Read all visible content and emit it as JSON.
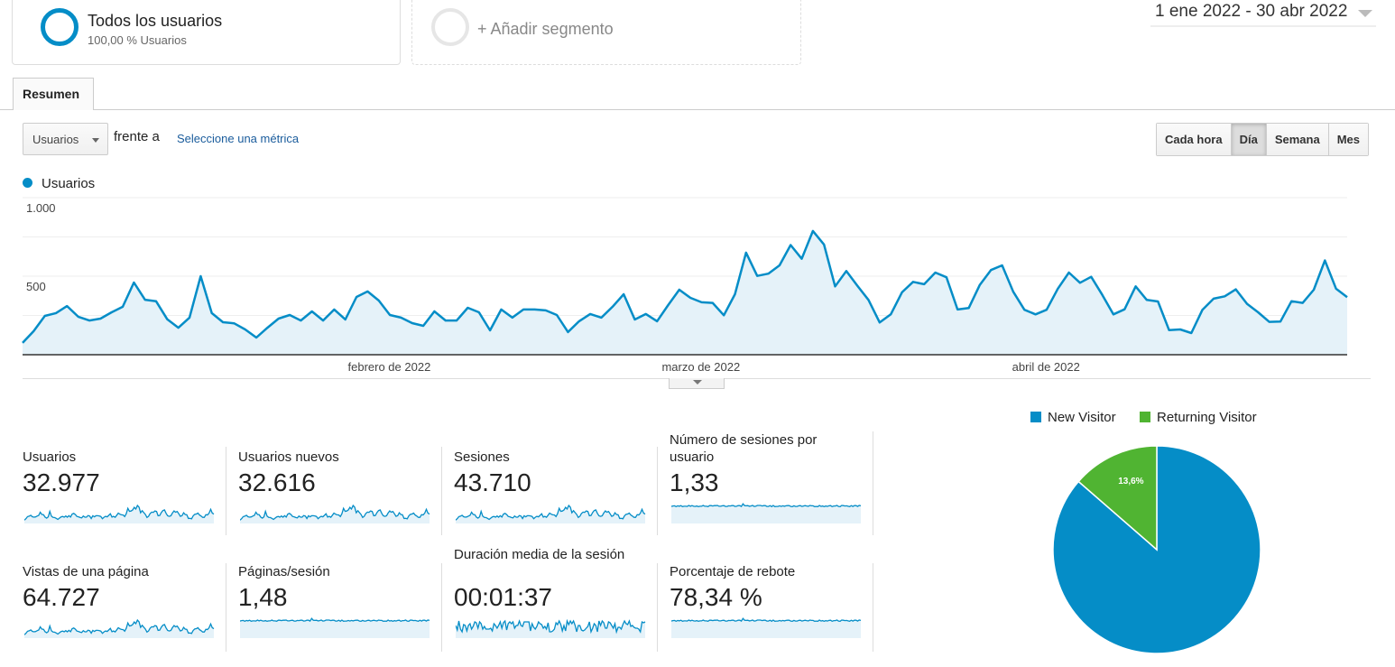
{
  "segments": [
    {
      "name": "Todos los usuarios",
      "sub": "100,00 % Usuarios"
    },
    {
      "add_label": "+ Añadir segmento"
    }
  ],
  "date_range": "1 ene 2022 - 30 abr 2022",
  "tab": "Resumen",
  "metric_select": "Usuarios",
  "versus": "frente a",
  "select_metric_link": "Seleccione una métrica",
  "granularity": {
    "options": [
      "Cada hora",
      "Día",
      "Semana",
      "Mes"
    ],
    "selected": "Día"
  },
  "colors": {
    "primary": "#058dc7",
    "secondary": "#50b432"
  },
  "chart_data": {
    "type": "area",
    "legend": "Usuarios",
    "yticks": [
      "1.000",
      "500"
    ],
    "ylim": [
      0,
      1000
    ],
    "x_labels": [
      {
        "label": "febrero de 2022",
        "index": 31
      },
      {
        "label": "marzo de 2022",
        "index": 59
      },
      {
        "label": "abril de 2022",
        "index": 90
      }
    ],
    "x_start": "2022-01-01",
    "x_end": "2022-04-30",
    "values": [
      75,
      150,
      247,
      265,
      310,
      242,
      218,
      230,
      270,
      305,
      460,
      350,
      340,
      225,
      172,
      236,
      500,
      265,
      207,
      200,
      161,
      109,
      172,
      230,
      253,
      218,
      276,
      218,
      288,
      224,
      368,
      403,
      345,
      253,
      236,
      201,
      184,
      276,
      218,
      218,
      299,
      270,
      155,
      288,
      236,
      288,
      288,
      282,
      253,
      144,
      213,
      259,
      236,
      305,
      385,
      224,
      259,
      213,
      316,
      414,
      362,
      334,
      330,
      251,
      385,
      650,
      502,
      516,
      569,
      698,
      611,
      788,
      702,
      435,
      533,
      439,
      349,
      205,
      257,
      397,
      464,
      449,
      523,
      493,
      288,
      297,
      445,
      539,
      569,
      401,
      286,
      257,
      286,
      420,
      523,
      458,
      496,
      381,
      257,
      289,
      435,
      349,
      339,
      157,
      161,
      138,
      286,
      357,
      372,
      416,
      324,
      270,
      209,
      211,
      341,
      330,
      414,
      600,
      420,
      366
    ]
  },
  "metrics": [
    {
      "label": "Usuarios",
      "value": "32.977",
      "spark": "trend"
    },
    {
      "label": "Usuarios nuevos",
      "value": "32.616",
      "spark": "trend"
    },
    {
      "label": "Sesiones",
      "value": "43.710",
      "spark": "trend"
    },
    {
      "label": "Número de sesiones por usuario",
      "value": "1,33",
      "spark": "flat"
    },
    {
      "label": "Vistas de una página",
      "value": "64.727",
      "spark": "trend"
    },
    {
      "label": "Páginas/sesión",
      "value": "1,48",
      "spark": "flat"
    },
    {
      "label": "Duración media de la sesión",
      "value": "00:01:37",
      "spark": "noisy"
    },
    {
      "label": "Porcentaje de rebote",
      "value": "78,34 %",
      "spark": "flat"
    }
  ],
  "pie": {
    "slices": [
      {
        "label": "New Visitor",
        "value": 86.4,
        "text": "86,4%",
        "color": "#058dc7"
      },
      {
        "label": "Returning Visitor",
        "value": 13.6,
        "text": "13,6%",
        "color": "#50b432"
      }
    ]
  }
}
